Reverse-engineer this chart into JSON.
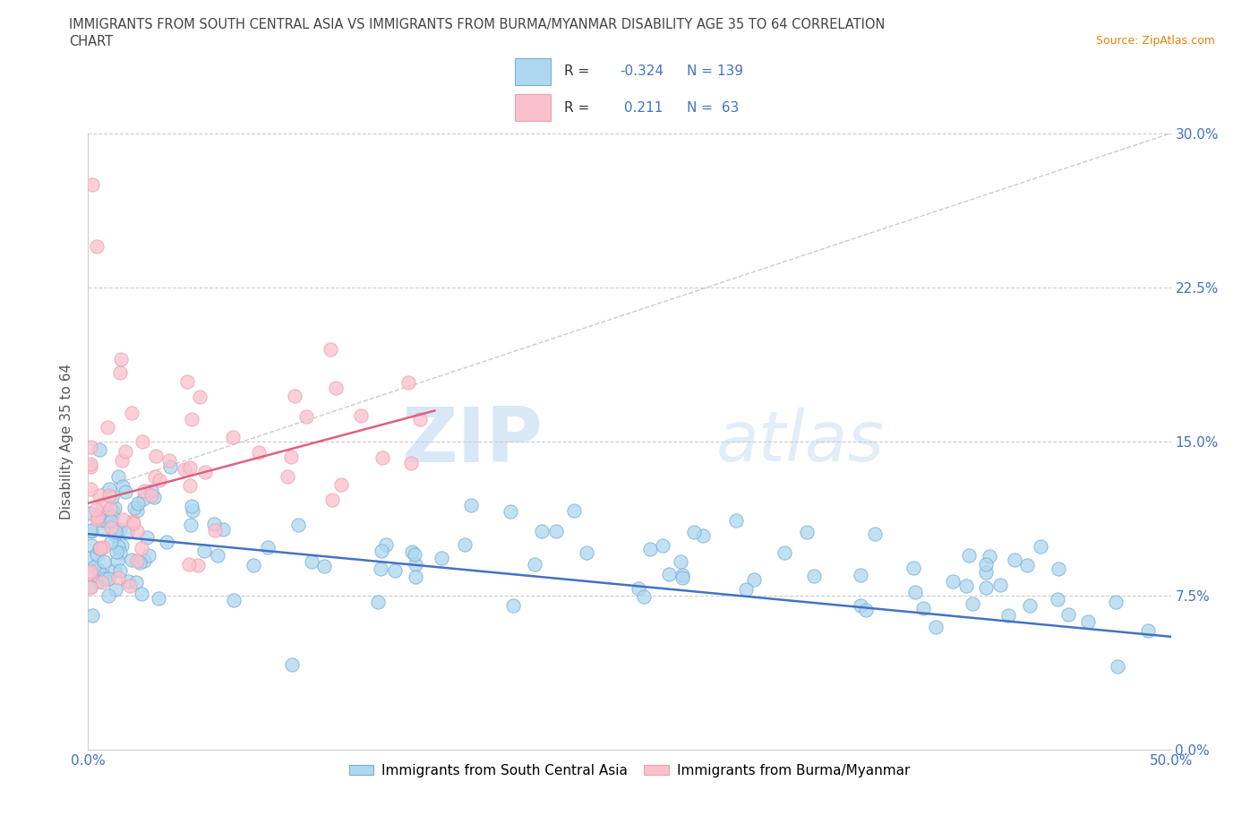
{
  "title_line1": "IMMIGRANTS FROM SOUTH CENTRAL ASIA VS IMMIGRANTS FROM BURMA/MYANMAR DISABILITY AGE 35 TO 64 CORRELATION",
  "title_line2": "CHART",
  "source_text": "Source: ZipAtlas.com",
  "ylabel": "Disability Age 35 to 64",
  "ytick_labels": [
    "0.0%",
    "7.5%",
    "15.0%",
    "22.5%",
    "30.0%"
  ],
  "ytick_values": [
    0.0,
    7.5,
    15.0,
    22.5,
    30.0
  ],
  "xlim": [
    0.0,
    50.0
  ],
  "ylim": [
    0.0,
    30.0
  ],
  "blue_color": "#7BAFD4",
  "blue_fill": "#ADD8F0",
  "pink_color": "#F0A0B0",
  "pink_fill": "#FAC0CC",
  "blue_R": -0.324,
  "blue_N": 139,
  "pink_R": 0.211,
  "pink_N": 63,
  "watermark_zip": "ZIP",
  "watermark_atlas": "atlas",
  "legend_label_blue": "Immigrants from South Central Asia",
  "legend_label_pink": "Immigrants from Burma/Myanmar",
  "trendline_blue_color": "#4472C4",
  "trendline_pink_color": "#E06080",
  "dashed_line_color": "#CCCCCC",
  "grid_color": "#CCCCCC",
  "source_color": "#E8820C",
  "axis_color": "#4472C4",
  "title_color": "#444444",
  "blue_line_y_start": 10.5,
  "blue_line_y_end": 5.5,
  "pink_line_x_start": 0.0,
  "pink_line_x_end": 16.0,
  "pink_line_y_start": 12.0,
  "pink_line_y_end": 16.5,
  "dashed_line_y_start": 12.5,
  "dashed_line_y_end": 30.0
}
